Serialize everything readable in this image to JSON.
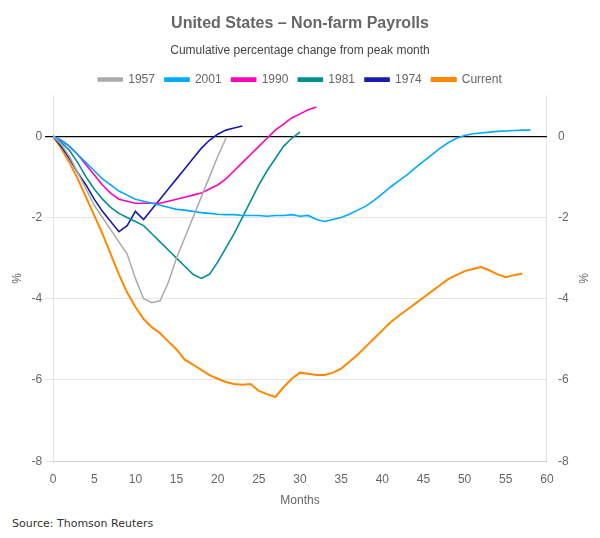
{
  "chart_data": {
    "type": "line",
    "title": "United States – Non-farm Payrolls",
    "subtitle": "Cumulative percentage change from peak month",
    "xlabel": "Months",
    "ylabel": "%",
    "y2label": "%",
    "annotations": [
      "Source: Thomson Reuters"
    ],
    "xlim": [
      0,
      60
    ],
    "xticks": [
      0,
      5,
      10,
      15,
      20,
      25,
      30,
      35,
      40,
      45,
      50,
      55,
      60
    ],
    "ylim": [
      -8,
      1
    ],
    "yticks": [
      -8,
      -6,
      -4,
      -2,
      0
    ],
    "y2lim": [
      -8,
      1
    ],
    "y2ticks": [
      -8,
      -6,
      -4,
      -2,
      0
    ],
    "grid": "y",
    "legend": "top",
    "series": [
      {
        "name": "1957",
        "color": "#aaaaaa",
        "x": [
          0,
          1,
          2,
          3,
          4,
          5,
          6,
          7,
          8,
          9,
          10,
          11,
          12,
          13,
          14,
          15,
          16,
          17,
          18,
          19,
          20,
          21
        ],
        "values": [
          0,
          -0.2,
          -0.5,
          -0.9,
          -1.3,
          -1.7,
          -2.0,
          -2.3,
          -2.6,
          -2.9,
          -3.5,
          -4.0,
          -4.1,
          -4.05,
          -3.6,
          -3.0,
          -2.5,
          -2.0,
          -1.5,
          -1.0,
          -0.5,
          -0.05
        ]
      },
      {
        "name": "2001",
        "color": "#00aaff",
        "x": [
          0,
          1,
          2,
          3,
          4,
          5,
          6,
          7,
          8,
          9,
          10,
          11,
          12,
          13,
          14,
          15,
          16,
          17,
          18,
          19,
          20,
          21,
          22,
          23,
          24,
          25,
          26,
          27,
          28,
          29,
          30,
          31,
          32,
          33,
          34,
          35,
          36,
          37,
          38,
          39,
          40,
          41,
          42,
          43,
          44,
          45,
          46,
          47,
          48,
          49,
          50,
          51,
          52,
          53,
          54,
          55,
          56,
          57,
          58
        ],
        "values": [
          0,
          -0.1,
          -0.25,
          -0.45,
          -0.65,
          -0.85,
          -1.05,
          -1.2,
          -1.35,
          -1.45,
          -1.55,
          -1.6,
          -1.65,
          -1.7,
          -1.75,
          -1.8,
          -1.82,
          -1.85,
          -1.88,
          -1.9,
          -1.92,
          -1.93,
          -1.93,
          -1.95,
          -1.95,
          -1.95,
          -1.97,
          -1.95,
          -1.95,
          -1.93,
          -1.97,
          -1.95,
          -2.05,
          -2.1,
          -2.05,
          -2.0,
          -1.92,
          -1.82,
          -1.72,
          -1.58,
          -1.42,
          -1.25,
          -1.1,
          -0.95,
          -0.78,
          -0.62,
          -0.46,
          -0.3,
          -0.16,
          -0.05,
          0.02,
          0.06,
          0.08,
          0.1,
          0.12,
          0.13,
          0.14,
          0.15,
          0.15
        ]
      },
      {
        "name": "1990",
        "color": "#ff00bb",
        "x": [
          0,
          1,
          2,
          3,
          4,
          5,
          6,
          7,
          8,
          9,
          10,
          11,
          12,
          13,
          14,
          15,
          16,
          17,
          18,
          19,
          20,
          21,
          22,
          23,
          24,
          25,
          26,
          27,
          28,
          29,
          30,
          31,
          32
        ],
        "values": [
          0,
          -0.1,
          -0.25,
          -0.45,
          -0.7,
          -0.95,
          -1.2,
          -1.4,
          -1.55,
          -1.6,
          -1.65,
          -1.65,
          -1.65,
          -1.65,
          -1.6,
          -1.55,
          -1.5,
          -1.45,
          -1.4,
          -1.3,
          -1.2,
          -1.05,
          -0.85,
          -0.65,
          -0.45,
          -0.25,
          -0.05,
          0.15,
          0.3,
          0.45,
          0.55,
          0.65,
          0.72
        ]
      },
      {
        "name": "1981",
        "color": "#009090",
        "x": [
          0,
          1,
          2,
          3,
          4,
          5,
          6,
          7,
          8,
          9,
          10,
          11,
          12,
          13,
          14,
          15,
          16,
          17,
          18,
          19,
          20,
          21,
          22,
          23,
          24,
          25,
          26,
          27,
          28,
          29,
          30
        ],
        "values": [
          0,
          -0.15,
          -0.35,
          -0.65,
          -1.0,
          -1.3,
          -1.55,
          -1.75,
          -1.9,
          -2.0,
          -2.1,
          -2.2,
          -2.4,
          -2.6,
          -2.8,
          -3.0,
          -3.2,
          -3.4,
          -3.5,
          -3.4,
          -3.1,
          -2.75,
          -2.4,
          -2.0,
          -1.6,
          -1.2,
          -0.85,
          -0.55,
          -0.25,
          -0.05,
          0.1
        ]
      },
      {
        "name": "1974",
        "color": "#1a1ab0",
        "x": [
          0,
          1,
          2,
          3,
          4,
          5,
          6,
          7,
          8,
          9,
          10,
          11,
          12,
          13,
          14,
          15,
          16,
          17,
          18,
          19,
          20,
          21,
          22,
          23
        ],
        "values": [
          0,
          -0.25,
          -0.55,
          -0.9,
          -1.2,
          -1.55,
          -1.85,
          -2.1,
          -2.35,
          -2.2,
          -1.85,
          -2.05,
          -1.8,
          -1.55,
          -1.3,
          -1.05,
          -0.8,
          -0.55,
          -0.3,
          -0.1,
          0.05,
          0.15,
          0.2,
          0.25
        ]
      },
      {
        "name": "Current",
        "color": "#ff8800",
        "x": [
          0,
          1,
          2,
          3,
          4,
          5,
          6,
          7,
          8,
          9,
          10,
          11,
          12,
          13,
          14,
          15,
          16,
          17,
          18,
          19,
          20,
          21,
          22,
          23,
          24,
          25,
          26,
          27,
          28,
          29,
          30,
          31,
          32,
          33,
          34,
          35,
          36,
          37,
          38,
          39,
          40,
          41,
          42,
          43,
          44,
          45,
          46,
          47,
          48,
          49,
          50,
          51,
          52,
          53,
          54,
          55,
          56,
          57
        ],
        "values": [
          0,
          -0.3,
          -0.65,
          -1.05,
          -1.5,
          -1.95,
          -2.4,
          -2.9,
          -3.4,
          -3.85,
          -4.2,
          -4.5,
          -4.7,
          -4.85,
          -5.05,
          -5.25,
          -5.5,
          -5.62,
          -5.75,
          -5.88,
          -5.97,
          -6.05,
          -6.1,
          -6.12,
          -6.1,
          -6.27,
          -6.35,
          -6.42,
          -6.18,
          -5.97,
          -5.82,
          -5.85,
          -5.88,
          -5.88,
          -5.82,
          -5.72,
          -5.55,
          -5.38,
          -5.18,
          -4.98,
          -4.78,
          -4.58,
          -4.42,
          -4.27,
          -4.12,
          -3.97,
          -3.82,
          -3.67,
          -3.52,
          -3.42,
          -3.32,
          -3.27,
          -3.22,
          -3.3,
          -3.4,
          -3.47,
          -3.42,
          -3.38
        ]
      }
    ]
  }
}
